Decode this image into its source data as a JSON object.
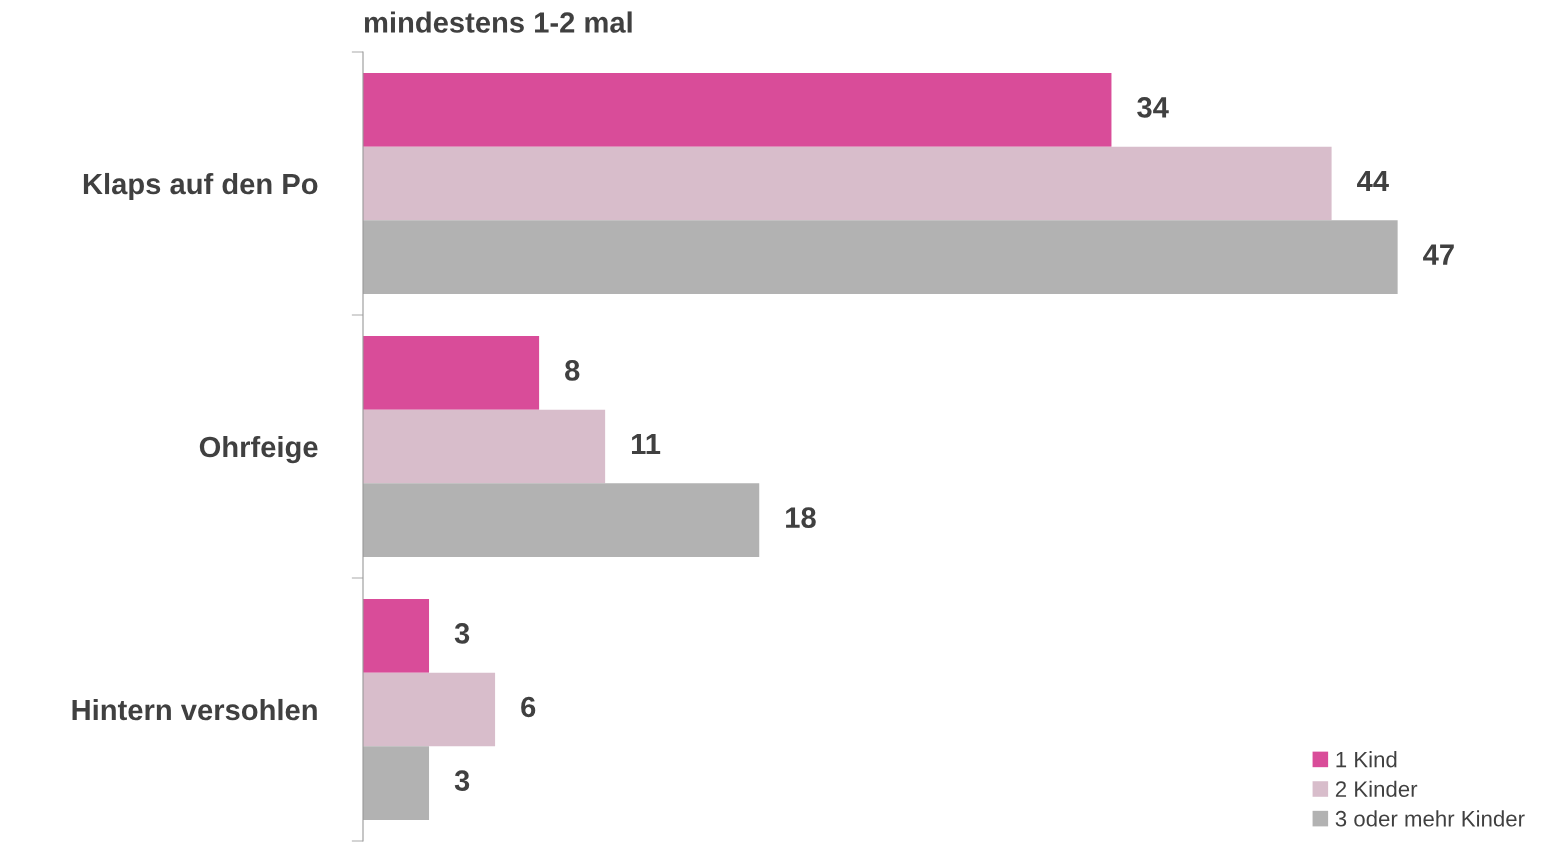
{
  "chart_data": {
    "type": "bar",
    "orientation": "horizontal",
    "title": "mindestens 1-2 mal",
    "categories": [
      "Klaps auf den Po",
      "Ohrfeige",
      "Hintern versohlen"
    ],
    "series": [
      {
        "name": "1 Kind",
        "color": "#d94c99",
        "values": [
          34,
          8,
          3
        ]
      },
      {
        "name": "2 Kinder",
        "color": "#d8bdcb",
        "values": [
          44,
          11,
          6
        ]
      },
      {
        "name": "3 oder mehr Kinder",
        "color": "#b2b2b2",
        "values": [
          47,
          18,
          3
        ]
      }
    ],
    "data_labels": true,
    "legend": "bottom right",
    "grid": false,
    "tick_labels": "y"
  }
}
